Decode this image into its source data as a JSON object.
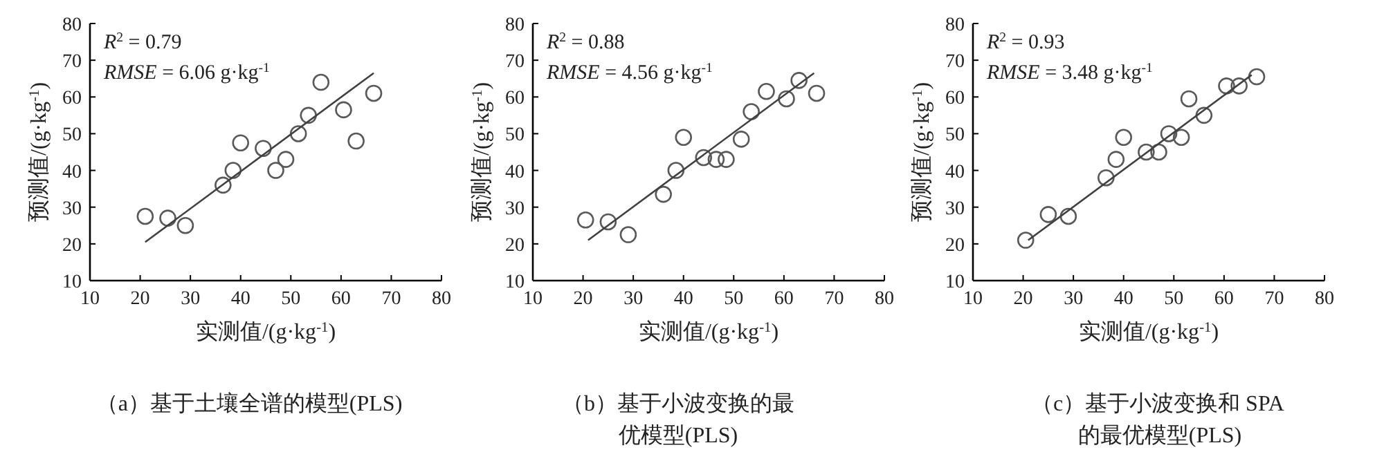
{
  "chart_data": [
    {
      "type": "scatter",
      "title": "（a）基于土壤全谱的模型(PLS)",
      "xlabel": "实测值/(g·kg$^{-1}$)",
      "ylabel": "预测值/(g·kg$^{-1}$)",
      "annotations": [
        "*R*$^{2}$ = 0.79",
        "*RMSE* = 6.06 g·kg$^{-1}$"
      ],
      "xlim": [
        10,
        80
      ],
      "ylim": [
        10,
        80
      ],
      "xticks": [
        10,
        20,
        30,
        40,
        50,
        60,
        70,
        80
      ],
      "yticks": [
        10,
        20,
        30,
        40,
        50,
        60,
        70,
        80
      ],
      "series": [
        {
          "marker": "circle",
          "color": "#595959",
          "x": [
            21,
            25.5,
            29,
            36.5,
            38.5,
            40,
            44.5,
            47,
            49,
            51.5,
            53.5,
            56,
            60.5,
            63,
            66.5
          ],
          "values": [
            27.5,
            27,
            25,
            36,
            40,
            47.5,
            46,
            40,
            43,
            50,
            55,
            64,
            56.5,
            48,
            61
          ]
        },
        {
          "type": "line",
          "color": "#404040",
          "x": [
            21,
            66.5
          ],
          "values": [
            20.5,
            66.5
          ]
        }
      ]
    },
    {
      "type": "scatter",
      "title": "（b）基于小波变换的最优模型(PLS)",
      "xlabel": "实测值/(g·kg$^{-1}$)",
      "ylabel": "预测值/(g·kg$^{-1}$)",
      "annotations": [
        "*R*$^{2}$ = 0.88",
        "*RMSE* = 4.56 g·kg$^{-1}$"
      ],
      "xlim": [
        10,
        80
      ],
      "ylim": [
        10,
        80
      ],
      "xticks": [
        10,
        20,
        30,
        40,
        50,
        60,
        70,
        80
      ],
      "yticks": [
        10,
        20,
        30,
        40,
        50,
        60,
        70,
        80
      ],
      "series": [
        {
          "marker": "circle",
          "color": "#595959",
          "x": [
            20.5,
            25,
            29,
            36,
            38.5,
            40,
            44,
            46.5,
            48.5,
            51.5,
            53.5,
            56.5,
            60.5,
            63,
            66.5
          ],
          "values": [
            26.5,
            26,
            22.5,
            33.5,
            40,
            49,
            43.5,
            43,
            43,
            48.5,
            56,
            61.5,
            59.5,
            64.5,
            61
          ]
        },
        {
          "type": "line",
          "color": "#404040",
          "x": [
            21,
            66
          ],
          "values": [
            21,
            66.5
          ]
        }
      ]
    },
    {
      "type": "scatter",
      "title": "（c）基于小波变换和 SPA 的最优模型(PLS)",
      "xlabel": "实测值/(g·kg$^{-1}$)",
      "ylabel": "预测值/(g·kg$^{-1}$)",
      "annotations": [
        "*R*$^{2}$ = 0.93",
        "*RMSE* = 3.48 g·kg$^{-1}$"
      ],
      "xlim": [
        10,
        80
      ],
      "ylim": [
        10,
        80
      ],
      "xticks": [
        10,
        20,
        30,
        40,
        50,
        60,
        70,
        80
      ],
      "yticks": [
        10,
        20,
        30,
        40,
        50,
        60,
        70,
        80
      ],
      "series": [
        {
          "marker": "circle",
          "color": "#595959",
          "x": [
            20.5,
            25,
            29,
            36.5,
            38.5,
            40,
            44.5,
            47,
            49,
            51.5,
            53,
            56,
            60.5,
            63,
            66.5
          ],
          "values": [
            21,
            28,
            27.5,
            38,
            43,
            49,
            45,
            45,
            50,
            49,
            59.5,
            55,
            63,
            63,
            65.5
          ]
        },
        {
          "type": "line",
          "color": "#404040",
          "x": [
            21,
            65.5
          ],
          "values": [
            21,
            66
          ]
        }
      ]
    }
  ]
}
